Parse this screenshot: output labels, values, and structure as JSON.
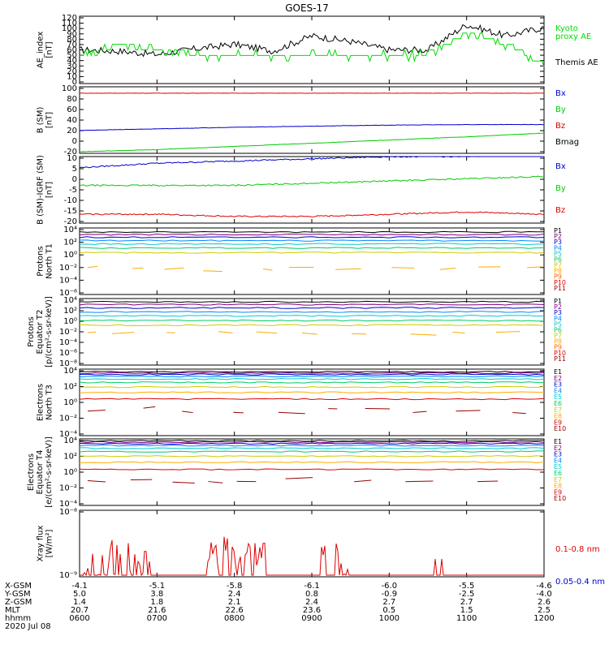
{
  "title": "GOES-17",
  "panels": [
    {
      "id": "ae",
      "ylabel": [
        "AE_index",
        "[nT]"
      ],
      "ticks": [
        "0",
        "10",
        "20",
        "30",
        "40",
        "50",
        "60",
        "70",
        "80",
        "90",
        "100",
        "110",
        "120"
      ],
      "legend": [
        {
          "text": "Kyoto",
          "color": "#00dd00"
        },
        {
          "text": "proxy AE",
          "color": "#00dd00"
        },
        {
          "text": "Themis AE",
          "color": "#000000"
        }
      ]
    },
    {
      "id": "b_sm",
      "ylabel": [
        "B (SM)",
        "[nT]"
      ],
      "ticks": [
        "-20",
        "0",
        "20",
        "40",
        "60",
        "80",
        "100"
      ],
      "legend": [
        {
          "text": "Bx",
          "color": "#0000cc"
        },
        {
          "text": "By",
          "color": "#00cc00"
        },
        {
          "text": "Bz",
          "color": "#dd0000"
        },
        {
          "text": "Bmag",
          "color": "#000000"
        }
      ]
    },
    {
      "id": "b_igrf",
      "ylabel": [
        "B (SM)-IGRF (SM)",
        "[nT]"
      ],
      "ticks": [
        "-20",
        "-15",
        "-10",
        "-5",
        "0",
        "5",
        "10"
      ],
      "legend": [
        {
          "text": "Bx",
          "color": "#0000cc"
        },
        {
          "text": "By",
          "color": "#00cc00"
        },
        {
          "text": "Bz",
          "color": "#dd0000"
        }
      ]
    },
    {
      "id": "protons_n",
      "ylabel": [
        "Protons",
        "North T1"
      ],
      "ticks": [
        "10⁻⁶",
        "10⁻⁴",
        "10⁻²",
        "10⁰",
        "10²",
        "10⁴"
      ],
      "legend": [
        {
          "text": "P1",
          "color": "#000000"
        },
        {
          "text": "P2",
          "color": "#800080"
        },
        {
          "text": "P3",
          "color": "#0000cc"
        },
        {
          "text": "P4",
          "color": "#0088ff"
        },
        {
          "text": "P5",
          "color": "#00cccc"
        },
        {
          "text": "P6",
          "color": "#00cc66"
        },
        {
          "text": "P7",
          "color": "#cccc00"
        },
        {
          "text": "P8",
          "color": "#ffaa00"
        },
        {
          "text": "P9",
          "color": "#ff6600"
        },
        {
          "text": "P10",
          "color": "#dd0000"
        },
        {
          "text": "P11",
          "color": "#990000"
        }
      ]
    },
    {
      "id": "protons_e",
      "ylabel": [
        "Protons",
        "Equator T2",
        "[p/(cm²-s-sr-keV)]"
      ],
      "ticks": [
        "10⁻⁸",
        "10⁻⁶",
        "10⁻⁴",
        "10⁻²",
        "10⁰",
        "10²",
        "10⁴"
      ],
      "legend": [
        {
          "text": "P1",
          "color": "#000000"
        },
        {
          "text": "P2",
          "color": "#800080"
        },
        {
          "text": "P3",
          "color": "#0000cc"
        },
        {
          "text": "P4",
          "color": "#0088ff"
        },
        {
          "text": "P5",
          "color": "#00cccc"
        },
        {
          "text": "P6",
          "color": "#00cc66"
        },
        {
          "text": "P7",
          "color": "#cccc00"
        },
        {
          "text": "P8",
          "color": "#ffaa00"
        },
        {
          "text": "P9",
          "color": "#ff6600"
        },
        {
          "text": "P10",
          "color": "#dd0000"
        },
        {
          "text": "P11",
          "color": "#990000"
        }
      ]
    },
    {
      "id": "electrons_n",
      "ylabel": [
        "Electrons",
        "North T3"
      ],
      "ticks": [
        "10⁻⁴",
        "10⁻²",
        "10⁰",
        "10²",
        "10⁴"
      ],
      "legend": [
        {
          "text": "E1",
          "color": "#000000"
        },
        {
          "text": "E2",
          "color": "#800080"
        },
        {
          "text": "E3",
          "color": "#0000cc"
        },
        {
          "text": "E4",
          "color": "#0088ff"
        },
        {
          "text": "E5",
          "color": "#00cccc"
        },
        {
          "text": "E6",
          "color": "#00cc66"
        },
        {
          "text": "E7",
          "color": "#cccc00"
        },
        {
          "text": "E8",
          "color": "#ffaa00"
        },
        {
          "text": "E9",
          "color": "#dd0000"
        },
        {
          "text": "E10",
          "color": "#990000"
        }
      ]
    },
    {
      "id": "electrons_e",
      "ylabel": [
        "Electrons",
        "Equator T4",
        "[e/(cm²-s-sr-keV)]"
      ],
      "ticks": [
        "10⁻⁴",
        "10⁻²",
        "10⁰",
        "10²",
        "10⁴"
      ],
      "legend": [
        {
          "text": "E1",
          "color": "#000000"
        },
        {
          "text": "E2",
          "color": "#800080"
        },
        {
          "text": "E3",
          "color": "#0000cc"
        },
        {
          "text": "E4",
          "color": "#0088ff"
        },
        {
          "text": "E5",
          "color": "#00cccc"
        },
        {
          "text": "E6",
          "color": "#00cc66"
        },
        {
          "text": "E7",
          "color": "#cccc00"
        },
        {
          "text": "E8",
          "color": "#ffaa00"
        },
        {
          "text": "E9",
          "color": "#dd0000"
        },
        {
          "text": "E10",
          "color": "#990000"
        }
      ]
    },
    {
      "id": "xray",
      "ylabel": [
        "Xray flux",
        "[W/m²]"
      ],
      "ticks": [
        "10⁻⁹",
        "10⁻⁸"
      ],
      "legend": [
        {
          "text": "0.1-0.8 nm",
          "color": "#dd0000"
        },
        {
          "text": "0.05-0.4 nm",
          "color": "#0000cc"
        }
      ]
    }
  ],
  "ephemeris": {
    "labels": [
      "X-GSM",
      "Y-GSM",
      "Z-GSM",
      "MLT",
      "hhmm"
    ],
    "date": "2020 Jul 08",
    "rows": [
      [
        "-4.1",
        "-5.1",
        "-5.8",
        "-6.1",
        "-6.0",
        "-5.5",
        "-4.6"
      ],
      [
        "5.0",
        "3.8",
        "2.4",
        "0.8",
        "-0.9",
        "-2.5",
        "-4.0"
      ],
      [
        "1.4",
        "1.8",
        "2.1",
        "2.4",
        "2.7",
        "2.7",
        "2.6"
      ],
      [
        "20.7",
        "21.6",
        "22.6",
        "23.6",
        "0.5",
        "1.5",
        "2.5"
      ],
      [
        "0600",
        "0700",
        "0800",
        "0900",
        "1000",
        "1100",
        "1200"
      ]
    ]
  },
  "chart_data": [
    {
      "type": "line",
      "panel": "ae",
      "ylim": [
        0,
        120
      ],
      "x": [
        "0600",
        "0630",
        "0700",
        "0730",
        "0800",
        "0830",
        "0900",
        "0930",
        "1000",
        "1030",
        "1100",
        "1130",
        "1200"
      ],
      "series": [
        {
          "name": "Themis AE",
          "color": "#000000",
          "values": [
            60,
            58,
            52,
            62,
            70,
            58,
            85,
            75,
            60,
            60,
            105,
            85,
            100
          ]
        },
        {
          "name": "Kyoto proxy AE",
          "color": "#00dd00",
          "values": [
            50,
            70,
            62,
            50,
            50,
            50,
            50,
            50,
            50,
            50,
            90,
            70,
            35
          ]
        }
      ]
    },
    {
      "type": "line",
      "panel": "b_sm",
      "ylim": [
        -25,
        100
      ],
      "x": [
        "0600",
        "0700",
        "0800",
        "0900",
        "1000",
        "1100",
        "1200"
      ],
      "series": [
        {
          "name": "Bz",
          "color": "#dd0000",
          "values": [
            88,
            88,
            88,
            88,
            88,
            88,
            88
          ]
        },
        {
          "name": "Bx",
          "color": "#0000cc",
          "values": [
            18,
            21,
            24,
            26,
            28,
            29,
            29
          ]
        },
        {
          "name": "By",
          "color": "#00cc00",
          "values": [
            -22,
            -18,
            -12,
            -6,
            0,
            6,
            13
          ]
        }
      ]
    },
    {
      "type": "line",
      "panel": "b_igrf",
      "ylim": [
        -20,
        10
      ],
      "x": [
        "0600",
        "0700",
        "0800",
        "0900",
        "1000",
        "1100",
        "1200"
      ],
      "series": [
        {
          "name": "Bx",
          "color": "#0000cc",
          "values": [
            5,
            7,
            8,
            9,
            10,
            10,
            11
          ]
        },
        {
          "name": "By",
          "color": "#00cc00",
          "values": [
            -3,
            -3,
            -3,
            -2,
            -1,
            0,
            1
          ]
        },
        {
          "name": "Bz",
          "color": "#dd0000",
          "values": [
            -16,
            -16,
            -17,
            -17,
            -16,
            -15,
            -16
          ]
        }
      ]
    }
  ]
}
